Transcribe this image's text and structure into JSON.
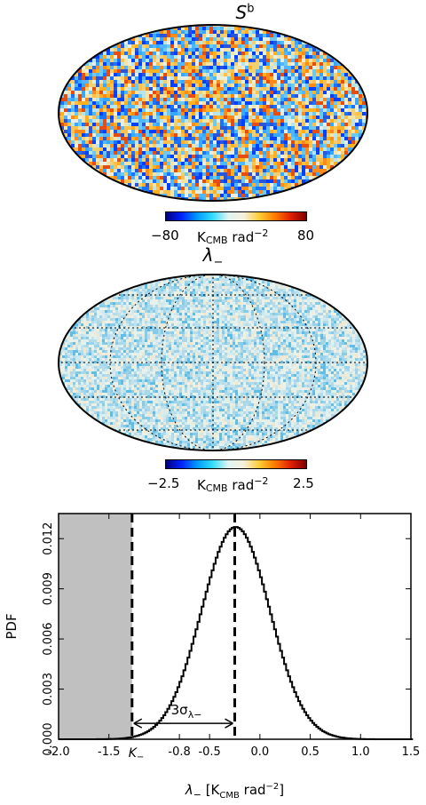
{
  "maps": {
    "top": {
      "title_main": "S",
      "title_sup": "b",
      "cbar_min": "−80",
      "cbar_max": "80",
      "cbar_unit_k": "K",
      "cbar_unit_sub": "CMB",
      "cbar_unit_rad": " rad",
      "cbar_unit_sup": "−2"
    },
    "middle": {
      "title_main": "λ",
      "title_sub": "−",
      "cbar_min": "−2.5",
      "cbar_max": "2.5",
      "cbar_unit_k": "K",
      "cbar_unit_sub": "CMB",
      "cbar_unit_rad": " rad",
      "cbar_unit_sup": "−2"
    }
  },
  "colors": {
    "histogram": "#000000",
    "shaded_region": "#c0c0c0",
    "cold": "#0044ff",
    "warm": "#ff7a00"
  },
  "chart_data": {
    "type": "line",
    "description_type": "histogram",
    "xlabel_main": "λ",
    "xlabel_sub": "−",
    "xlabel_unit_k": "K",
    "xlabel_unit_sub": "CMB",
    "xlabel_unit_rad": " rad",
    "xlabel_unit_sup": "−2",
    "ylabel": "PDF",
    "xlim": [
      -2.0,
      1.5
    ],
    "ylim": [
      0.0,
      0.0135
    ],
    "xticks": [
      {
        "value": -2.0,
        "label": "-2.0"
      },
      {
        "value": -1.5,
        "label": "-1.5"
      },
      {
        "value": -0.8,
        "label": "-0.8"
      },
      {
        "value": -0.5,
        "label": "-0.5"
      },
      {
        "value": 0.0,
        "label": "0.0"
      },
      {
        "value": 0.5,
        "label": "0.5"
      },
      {
        "value": 1.0,
        "label": "1.0"
      },
      {
        "value": 1.5,
        "label": "1.5"
      }
    ],
    "yticks": [
      {
        "value": 0.0,
        "label": "0.000"
      },
      {
        "value": 0.003,
        "label": "0.003"
      },
      {
        "value": 0.006,
        "label": "0.006"
      },
      {
        "value": 0.009,
        "label": "0.009"
      },
      {
        "value": 0.012,
        "label": "0.012"
      }
    ],
    "shaded_region": {
      "x_from": -2.0,
      "x_to": -1.27
    },
    "k_minus": {
      "value": -1.27,
      "label_main": "K",
      "label_sub": "−"
    },
    "mean": -0.25,
    "sigma": 0.34,
    "peak": 0.0127,
    "arrow_label_main": "3σ",
    "arrow_label_sub": "λ−",
    "curve": [
      [
        -2.0,
        0.0
      ],
      [
        -1.3,
        0.0
      ],
      [
        -1.2,
        2e-05
      ],
      [
        -1.1,
        0.0001
      ],
      [
        -1.0,
        0.0003
      ],
      [
        -0.9,
        0.0008
      ],
      [
        -0.8,
        0.0019
      ],
      [
        -0.7,
        0.0037
      ],
      [
        -0.6,
        0.0062
      ],
      [
        -0.5,
        0.0089
      ],
      [
        -0.4,
        0.0113
      ],
      [
        -0.3,
        0.0126
      ],
      [
        -0.25,
        0.0127
      ],
      [
        -0.2,
        0.0126
      ],
      [
        -0.1,
        0.0115
      ],
      [
        0.0,
        0.0096
      ],
      [
        0.1,
        0.0072
      ],
      [
        0.2,
        0.0049
      ],
      [
        0.3,
        0.0029
      ],
      [
        0.4,
        0.0016
      ],
      [
        0.5,
        0.0007
      ],
      [
        0.6,
        0.0003
      ],
      [
        0.7,
        0.0001
      ],
      [
        0.8,
        3e-05
      ],
      [
        0.9,
        0.0
      ],
      [
        1.5,
        0.0
      ]
    ]
  }
}
